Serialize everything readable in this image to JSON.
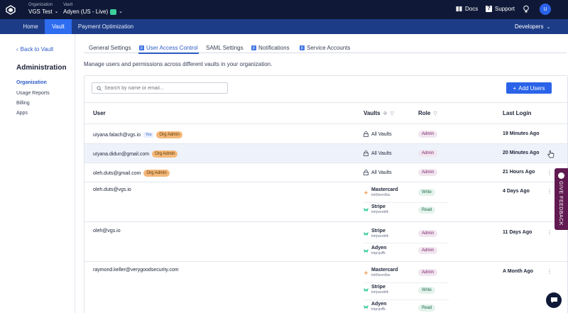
{
  "header": {
    "org_label": "Organization",
    "org_value": "VGS Test",
    "vault_label": "Vault",
    "vault_value": "Adyen  (US - Live)",
    "docs": "Docs",
    "support": "Support",
    "avatar_initial": "U"
  },
  "nav": {
    "home": "Home",
    "vault": "Vault",
    "payment_optimization": "Payment Optimization",
    "developers": "Developers"
  },
  "sidebar": {
    "back": "Back to Vault",
    "title": "Administration",
    "items": [
      "Organization",
      "Usage Reports",
      "Billing",
      "Apps"
    ]
  },
  "tabs": [
    "General Settings",
    "User Access Control",
    "SAML Settings",
    "Notifications",
    "Service Accounts"
  ],
  "description": "Manage users and permissions across different vaults in your organization.",
  "search": {
    "placeholder": "Search by name or email..."
  },
  "add_users": "Add Users",
  "table": {
    "headers": {
      "user": "User",
      "vaults": "Vaults",
      "role": "Role",
      "last_login": "Last Login"
    },
    "rows": [
      {
        "email": "uIyana.falach@vgs.io",
        "you": "You",
        "org_admin": "Org Admin",
        "vault": "All Vaults",
        "role": "Admin",
        "last_login": "19 Minutes Ago"
      },
      {
        "email": "uIyana.didun@gmail.com",
        "org_admin": "Org Admin",
        "vault": "All Vaults",
        "role": "Admin",
        "last_login": "20 Minutes Ago"
      },
      {
        "email": "oleh.duts@gmail.com",
        "org_admin": "Org Admin",
        "vault": "All Vaults",
        "role": "Admin",
        "last_login": "21 Hours Ago"
      },
      {
        "email": "oleh.duts@vgs.io",
        "last_login": "4 Days Ago",
        "vaults": [
          {
            "name": "Mastercard",
            "id": "tntt0wvn6tw",
            "role": "Write"
          },
          {
            "name": "Stripe",
            "id": "tntrjweobfk",
            "role": "Read"
          }
        ]
      },
      {
        "email": "oleh@vgs.io",
        "last_login": "11 Days Ago",
        "vaults": [
          {
            "name": "Stripe",
            "id": "tntrjweobfk",
            "role": "Admin"
          },
          {
            "name": "Adyen",
            "id": "tntpvjoffk",
            "role": "Admin"
          }
        ]
      },
      {
        "email": "raymond.keller@verygoodsecurity.com",
        "last_login": "A Month Ago",
        "vaults": [
          {
            "name": "Mastercard",
            "id": "tntt0wvn6tw",
            "role": "Admin"
          },
          {
            "name": "Stripe",
            "id": "tntrjweobfk",
            "role": "Write"
          },
          {
            "name": "Adyen",
            "id": "tntpvjoffk",
            "role": "Read"
          }
        ]
      }
    ]
  },
  "feedback": "GIVE FEEDBACK",
  "colors": {
    "header_bg": "#0f1937",
    "nav_bg": "#1d3c87",
    "accent": "#2a63e8",
    "feedback_bg": "#611a51"
  }
}
